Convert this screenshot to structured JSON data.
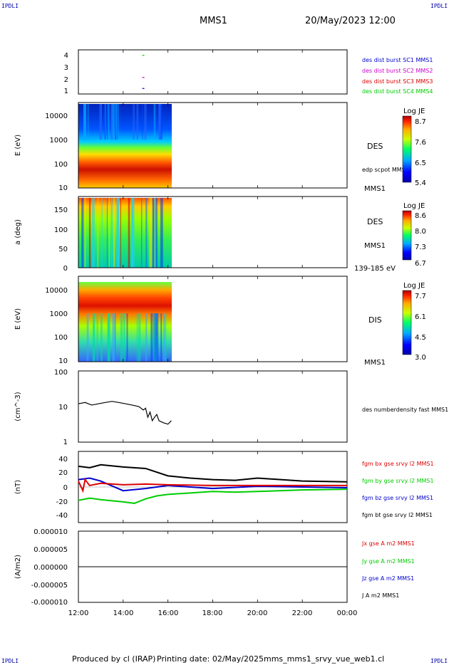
{
  "header": {
    "corner_label": "IPDLI",
    "title": "MMS1",
    "datetime": "20/May/2023 12:00"
  },
  "footer": {
    "produced_by": "Produced by cl (IRAP)",
    "printing_date": "Printing date: 02/May/2025",
    "filename": "mms_mms1_srvy_vue_web1.cl"
  },
  "colors": {
    "frame": "#000000",
    "blue": "#0000cc",
    "magenta": "#cc00cc",
    "red": "#dd0000",
    "green": "#00cc00",
    "black": "#000000"
  },
  "chart_data": [
    {
      "type": "scatter",
      "panel": "spacecraft-indicator",
      "ylim": [
        0.5,
        4.5
      ],
      "y_ticks": [
        "1",
        "2",
        "3",
        "4"
      ],
      "series": [
        {
          "name": "des dist burst SC1 MMS1",
          "color": "#0000cc",
          "x": [
            14.9
          ],
          "y": [
            1
          ]
        },
        {
          "name": "des dist burst SC2 MMS2",
          "color": "#cc00cc",
          "x": [
            14.9
          ],
          "y": [
            2
          ]
        },
        {
          "name": "des dist burst SC3 MMS3",
          "color": "#dd0000",
          "x": [],
          "y": []
        },
        {
          "name": "des dist burst SC4 MMS4",
          "color": "#00cc00",
          "x": [
            14.9
          ],
          "y": [
            4
          ]
        }
      ]
    },
    {
      "type": "heatmap",
      "panel": "des-energy-spectrogram",
      "ylabel": "E (eV)",
      "y_ticks": [
        "10",
        "100",
        "1000",
        "10000"
      ],
      "yscale": "log",
      "ylim": [
        10,
        30000
      ],
      "data_x_range": [
        12.0,
        16.15
      ],
      "side_labels": [
        "DES",
        "edp scpot MMS1",
        "MMS1"
      ],
      "colorbar": {
        "title": "Log JE",
        "ticks": [
          "8.7",
          "7.6",
          "6.5",
          "5.4"
        ],
        "range": [
          5.4,
          8.7
        ]
      }
    },
    {
      "type": "heatmap",
      "panel": "des-pitch-angle",
      "ylabel": "a (deg)",
      "y_ticks": [
        "0",
        "50",
        "100",
        "150"
      ],
      "ylim": [
        0,
        180
      ],
      "data_x_range": [
        12.0,
        16.15
      ],
      "side_labels": [
        "DES",
        "MMS1",
        "139-185 eV"
      ],
      "colorbar": {
        "title": "Log JE",
        "ticks": [
          "8.6",
          "8.0",
          "7.3",
          "6.7"
        ],
        "range": [
          6.7,
          8.6
        ]
      }
    },
    {
      "type": "heatmap",
      "panel": "dis-energy-spectrogram",
      "ylabel": "E (eV)",
      "y_ticks": [
        "10",
        "100",
        "1000",
        "10000"
      ],
      "yscale": "log",
      "ylim": [
        10,
        30000
      ],
      "data_x_range": [
        12.0,
        16.15
      ],
      "side_labels": [
        "DIS",
        "MMS1"
      ],
      "colorbar": {
        "title": "Log JE",
        "ticks": [
          "7.7",
          "6.1",
          "4.5",
          "3.0"
        ],
        "range": [
          3.0,
          7.7
        ]
      }
    },
    {
      "type": "line",
      "panel": "density",
      "ylabel": "(cm^-3)",
      "y_ticks": [
        "1",
        "10",
        "100"
      ],
      "yscale": "log",
      "ylim": [
        1,
        100
      ],
      "series": [
        {
          "name": "des numberdensity fast MMS1",
          "color": "#000000",
          "x": [
            12.0,
            12.3,
            12.6,
            12.9,
            13.2,
            13.5,
            13.8,
            14.1,
            14.4,
            14.7,
            14.9,
            15.0,
            15.1,
            15.2,
            15.3,
            15.4,
            15.5,
            15.6,
            15.8,
            16.0,
            16.15
          ],
          "y": [
            12,
            13,
            11,
            12,
            13,
            14,
            13,
            12,
            11,
            10,
            8,
            9,
            5,
            7,
            4,
            5,
            6,
            4,
            3.5,
            3.2,
            4
          ]
        }
      ]
    },
    {
      "type": "line",
      "panel": "magnetic-field",
      "ylabel": "(nT)",
      "y_ticks": [
        "-40",
        "-20",
        "0",
        "20",
        "40"
      ],
      "ylim": [
        -48,
        48
      ],
      "series": [
        {
          "name": "fgm bx gse srvy l2 MMS1",
          "color": "#dd0000",
          "x": [
            12.0,
            12.2,
            12.3,
            12.5,
            13.0,
            14.0,
            15.0,
            16.0,
            18.0,
            20.0,
            22.0,
            24.0
          ],
          "y": [
            8,
            -5,
            10,
            2,
            5,
            3,
            4,
            3,
            2,
            2,
            2,
            2
          ]
        },
        {
          "name": "fgm by gse srvy l2 MMS1",
          "color": "#00cc00",
          "x": [
            12.0,
            12.5,
            13.0,
            14.0,
            14.5,
            15.0,
            15.5,
            16.0,
            17.0,
            18.0,
            19.0,
            20.0,
            22.0,
            24.0
          ],
          "y": [
            -18,
            -15,
            -17,
            -20,
            -22,
            -16,
            -12,
            -10,
            -8,
            -6,
            -7,
            -6,
            -4,
            -3
          ]
        },
        {
          "name": "fgm bz gse srvy l2 MMS1",
          "color": "#0000cc",
          "x": [
            12.0,
            12.5,
            13.0,
            14.0,
            15.0,
            16.0,
            17.0,
            18.0,
            20.0,
            22.0,
            24.0
          ],
          "y": [
            10,
            12,
            8,
            -5,
            -2,
            2,
            0,
            -2,
            1,
            0,
            -1
          ]
        },
        {
          "name": "fgm bt gse srvy l2 MMS1",
          "color": "#000000",
          "x": [
            12.0,
            12.5,
            13.0,
            14.0,
            15.0,
            16.0,
            17.0,
            18.0,
            19.0,
            20.0,
            22.0,
            24.0
          ],
          "y": [
            28,
            26,
            30,
            27,
            25,
            15,
            12,
            10,
            9,
            12,
            8,
            7
          ]
        }
      ]
    },
    {
      "type": "line",
      "panel": "current-density",
      "ylabel": "(A/m2)",
      "y_ticks": [
        "0.000010",
        "0.000005",
        "0.000000",
        "-0.000005",
        "-0.000010"
      ],
      "ylim": [
        -1e-05,
        1e-05
      ],
      "series": [
        {
          "name": "Jx gse A m2 MMS1",
          "color": "#dd0000",
          "x": [
            12.0,
            24.0
          ],
          "y": [
            0,
            0
          ]
        },
        {
          "name": "Jy gse A m2 MMS1",
          "color": "#00cc00",
          "x": [
            12.0,
            24.0
          ],
          "y": [
            0,
            0
          ]
        },
        {
          "name": "Jz gse A m2 MMS1",
          "color": "#0000cc",
          "x": [
            12.0,
            24.0
          ],
          "y": [
            0,
            0
          ]
        },
        {
          "name": "J A m2 MMS1",
          "color": "#000000",
          "x": [
            12.0,
            24.0
          ],
          "y": [
            0,
            0
          ]
        }
      ]
    }
  ],
  "x_axis": {
    "ticks": [
      "12:00",
      "14:00",
      "16:00",
      "18:00",
      "20:00",
      "22:00",
      "00:00"
    ],
    "range_hours": [
      12,
      24
    ]
  }
}
